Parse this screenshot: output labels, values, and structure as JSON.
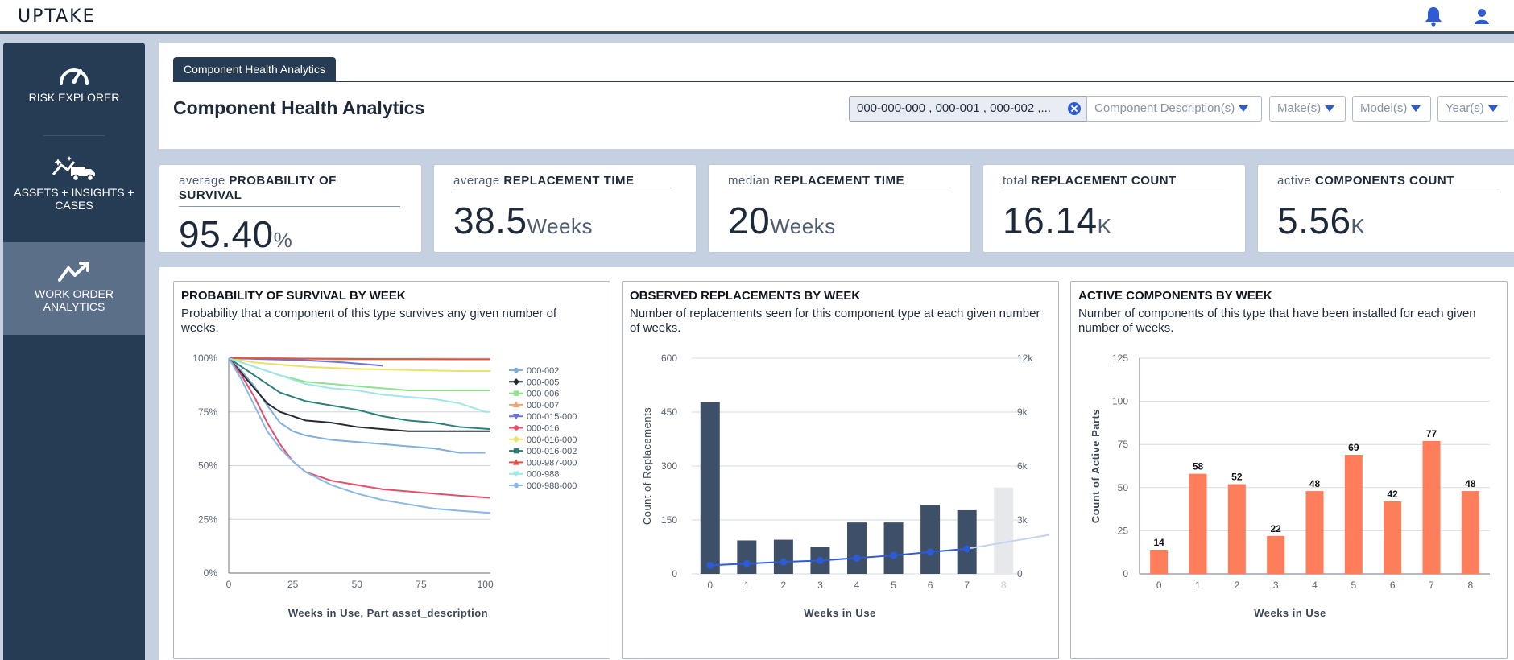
{
  "header": {
    "logo": "UPTAKE",
    "icons": [
      "bell-icon",
      "user-icon"
    ]
  },
  "sidebar": {
    "items": [
      {
        "label": "RISK EXPLORER",
        "icon": "gauge-icon",
        "active": false
      },
      {
        "label": "ASSETS + INSIGHTS + CASES",
        "icon": "truck-sparkle-icon",
        "active": false
      },
      {
        "label": "WORK ORDER ANALYTICS",
        "icon": "trend-icon",
        "active": true
      }
    ]
  },
  "main": {
    "tab": "Component Health Analytics",
    "title": "Component Health Analytics",
    "filters": {
      "part_numbers": "000-000-000 , 000-001 , 000-002 ,...",
      "component_description": "Component Description(s)",
      "make": "Make(s)",
      "model": "Model(s)",
      "year": "Year(s)"
    }
  },
  "kpis": [
    {
      "qualifier": "average",
      "metric": "PROBABILITY OF SURVIVAL",
      "value": "95.40",
      "unit": "%"
    },
    {
      "qualifier": "average",
      "metric": "REPLACEMENT TIME",
      "value": "38.5",
      "unit": "Weeks"
    },
    {
      "qualifier": "median",
      "metric": "REPLACEMENT TIME",
      "value": "20",
      "unit": "Weeks"
    },
    {
      "qualifier": "total",
      "metric": "REPLACEMENT COUNT",
      "value": "16.14",
      "unit": "K"
    },
    {
      "qualifier": "active",
      "metric": "COMPONENTS COUNT",
      "value": "5.56",
      "unit": "K"
    }
  ],
  "charts": {
    "survival": {
      "title": "PROBABILITY OF SURVIVAL BY WEEK",
      "description": "Probability that a component of this type survives any given number of weeks."
    },
    "replacements": {
      "title": "OBSERVED REPLACEMENTS BY WEEK",
      "description": "Number of replacements seen for this component type at each given number of weeks."
    },
    "active": {
      "title": "ACTIVE COMPONENTS BY WEEK",
      "description": "Number of components of this type that have been installed for each given number of weeks."
    }
  },
  "chart_data": [
    {
      "type": "line",
      "title": "PROBABILITY OF SURVIVAL BY WEEK",
      "xlabel": "Weeks in Use, Part asset_description",
      "ylabel": "",
      "xlim": [
        0,
        102
      ],
      "ylim": [
        0,
        100
      ],
      "x_ticks": [
        "0",
        "25",
        "50",
        "75",
        "100"
      ],
      "x_tick_values": [
        0,
        25,
        50,
        75,
        100
      ],
      "y_ticks": [
        "0%",
        "25%",
        "50%",
        "75%",
        "100%"
      ],
      "y_tick_values": [
        0,
        25,
        50,
        75,
        100
      ],
      "legend_position": "right",
      "series": [
        {
          "name": "000-002",
          "color": "#7fb0dc",
          "marker": "circle",
          "x": [
            0,
            5,
            10,
            15,
            20,
            25,
            30,
            40,
            50,
            60,
            70,
            80,
            90,
            100
          ],
          "y": [
            100,
            94,
            87,
            78,
            70,
            66,
            64,
            62,
            61,
            60,
            59,
            58,
            56,
            56
          ]
        },
        {
          "name": "000-005",
          "color": "#222a33",
          "marker": "diamond",
          "x": [
            0,
            5,
            10,
            15,
            20,
            25,
            30,
            40,
            50,
            60,
            70,
            80,
            90,
            102
          ],
          "y": [
            100,
            93,
            86,
            79,
            75,
            73,
            71,
            70,
            68,
            67,
            66,
            66,
            66,
            66
          ]
        },
        {
          "name": "000-006",
          "color": "#8fe08f",
          "marker": "square",
          "x": [
            0,
            10,
            20,
            30,
            40,
            50,
            60,
            70,
            80,
            90,
            102
          ],
          "y": [
            100,
            96,
            92,
            89,
            88,
            87,
            86,
            85,
            85,
            85,
            85
          ]
        },
        {
          "name": "000-007",
          "color": "#f2a46a",
          "marker": "triangle",
          "x": [
            0,
            20,
            40,
            60,
            80,
            102
          ],
          "y": [
            100,
            100,
            99.5,
            99.5,
            99.5,
            99.5
          ]
        },
        {
          "name": "000-015-000",
          "color": "#6a74e0",
          "marker": "triangle-down",
          "x": [
            0,
            15,
            30,
            45,
            55,
            60
          ],
          "y": [
            100,
            99.5,
            99,
            98,
            97,
            96.5
          ]
        },
        {
          "name": "000-016",
          "color": "#e0506c",
          "marker": "circle",
          "x": [
            0,
            5,
            10,
            15,
            20,
            25,
            30,
            40,
            50,
            60,
            70,
            80,
            90,
            102
          ],
          "y": [
            100,
            92,
            82,
            70,
            60,
            52,
            47,
            43,
            41,
            39,
            38,
            37,
            36,
            35
          ]
        },
        {
          "name": "000-016-000",
          "color": "#ece06a",
          "marker": "diamond",
          "x": [
            0,
            10,
            20,
            30,
            50,
            70,
            90,
            102
          ],
          "y": [
            100,
            98,
            97,
            96,
            95,
            94.5,
            94,
            94
          ]
        },
        {
          "name": "000-016-002",
          "color": "#2b7f7a",
          "marker": "square",
          "x": [
            0,
            5,
            10,
            15,
            20,
            30,
            40,
            50,
            60,
            70,
            80,
            90,
            102
          ],
          "y": [
            100,
            96,
            92,
            88,
            84,
            80,
            78,
            76,
            73,
            71,
            70,
            68,
            67
          ]
        },
        {
          "name": "000-987-000",
          "color": "#e05542",
          "marker": "triangle",
          "x": [
            0,
            30,
            60,
            90,
            102
          ],
          "y": [
            100,
            99.8,
            99.6,
            99.5,
            99.5
          ]
        },
        {
          "name": "000-988",
          "color": "#9fe6e6",
          "marker": "triangle-down",
          "x": [
            0,
            10,
            20,
            30,
            40,
            50,
            60,
            70,
            80,
            90,
            100,
            102
          ],
          "y": [
            100,
            96,
            92,
            88,
            86,
            85,
            83,
            82,
            81,
            79,
            75,
            75
          ]
        },
        {
          "name": "000-988-000",
          "color": "#8ab8e6",
          "marker": "circle",
          "x": [
            0,
            5,
            10,
            15,
            20,
            25,
            30,
            40,
            50,
            60,
            70,
            80,
            90,
            102
          ],
          "y": [
            100,
            90,
            78,
            66,
            58,
            52,
            47,
            41,
            37,
            34,
            32,
            30,
            29,
            28
          ]
        }
      ]
    },
    {
      "type": "bar",
      "title": "OBSERVED REPLACEMENTS BY WEEK",
      "xlabel": "Weeks in Use",
      "ylabel": "Count of Replacements",
      "categories": [
        "0",
        "1",
        "2",
        "3",
        "4",
        "5",
        "6",
        "7",
        "8"
      ],
      "values": [
        478,
        93,
        95,
        75,
        143,
        143,
        192,
        177,
        240
      ],
      "ylim": [
        0,
        600
      ],
      "y_ticks": [
        "0",
        "150",
        "300",
        "450",
        "600"
      ],
      "y_tick_values": [
        0,
        150,
        300,
        450,
        600
      ],
      "y2_ticks": [
        "0",
        "3k",
        "6k",
        "9k",
        "12k"
      ],
      "y2_tick_values": [
        0,
        3000,
        6000,
        9000,
        12000
      ],
      "y2lim": [
        0,
        12000
      ],
      "bar_color": "#3e5068",
      "line_series": {
        "name": "cumulative",
        "color": "#2d5bd6",
        "x": [
          "0",
          "1",
          "2",
          "3",
          "4",
          "5",
          "6",
          "7",
          "8"
        ],
        "values": [
          478,
          571,
          666,
          741,
          884,
          1027,
          1219,
          1396,
          1636
        ]
      }
    },
    {
      "type": "bar",
      "title": "ACTIVE COMPONENTS BY WEEK",
      "xlabel": "Weeks in Use",
      "ylabel": "Count of Active Parts",
      "categories": [
        "0",
        "1",
        "2",
        "3",
        "4",
        "5",
        "6",
        "7",
        "8"
      ],
      "values": [
        14,
        58,
        52,
        22,
        48,
        69,
        42,
        77,
        48
      ],
      "labels": [
        "14",
        "58",
        "52",
        "22",
        "48",
        "69",
        "42",
        "77",
        "48"
      ],
      "ylim": [
        0,
        125
      ],
      "y_ticks": [
        "0",
        "25",
        "50",
        "75",
        "100",
        "125"
      ],
      "y_tick_values": [
        0,
        25,
        50,
        75,
        100,
        125
      ],
      "bar_color": "#fe7d5a"
    }
  ]
}
